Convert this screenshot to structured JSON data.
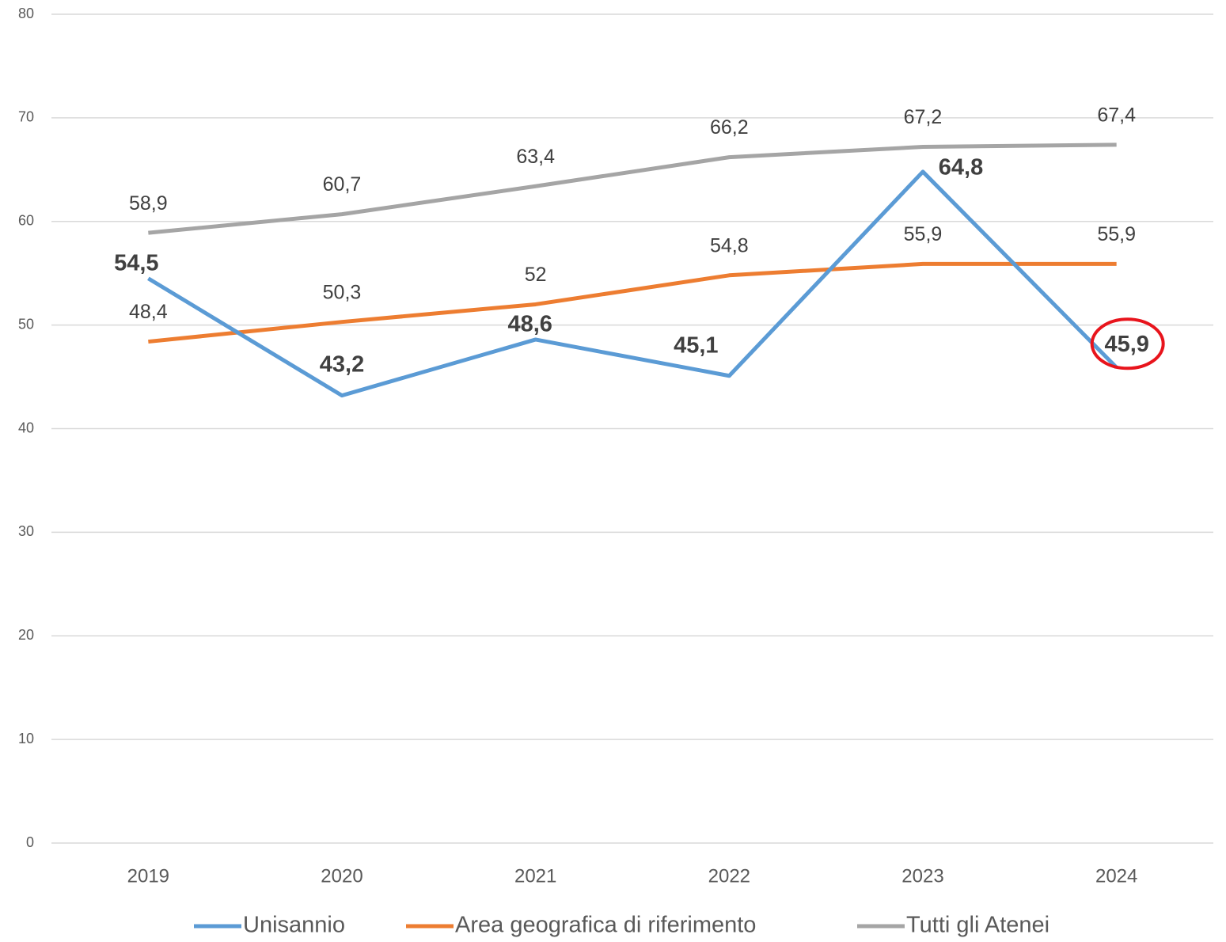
{
  "chart_data": {
    "type": "line",
    "categories": [
      "2019",
      "2020",
      "2021",
      "2022",
      "2023",
      "2024"
    ],
    "series": [
      {
        "name": "Unisannio",
        "color": "#5b9bd5",
        "values": [
          54.5,
          43.2,
          48.6,
          45.1,
          64.8,
          45.9
        ],
        "value_labels": [
          "54,5",
          "43,2",
          "48,6",
          "45,1",
          "64,8",
          "45,9"
        ]
      },
      {
        "name": "Area geografica di riferimento",
        "color": "#ed7d31",
        "values": [
          48.4,
          50.3,
          52,
          54.8,
          55.9,
          55.9
        ],
        "value_labels": [
          "48,4",
          "50,3",
          "52",
          "54,8",
          "55,9",
          "55,9"
        ]
      },
      {
        "name": "Tutti gli Atenei",
        "color": "#a5a5a5",
        "values": [
          58.9,
          60.7,
          63.4,
          66.2,
          67.2,
          67.4
        ],
        "value_labels": [
          "58,9",
          "60,7",
          "63,4",
          "66,2",
          "67,2",
          "67,4"
        ]
      }
    ],
    "ylim": [
      0,
      80
    ],
    "yticks": [
      0,
      10,
      20,
      30,
      40,
      50,
      60,
      70,
      80
    ],
    "grid": true,
    "legend": "bottom"
  }
}
